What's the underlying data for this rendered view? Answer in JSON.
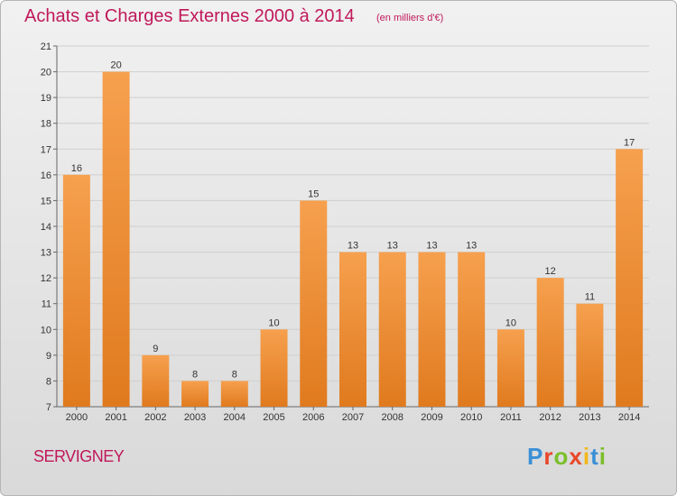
{
  "header": {
    "title": "Achats et Charges Externes 2000 à 2014",
    "subtitle": "(en milliers d'€)"
  },
  "footer": {
    "commune": "SERVIGNEY",
    "brand": "Proxiti"
  },
  "colors": {
    "title": "#c0185a",
    "bar_top": "#f6a04e",
    "bar_bottom": "#e07a1e",
    "brand_letters": [
      "#3a8fd6",
      "#e8482a",
      "#7bbf2a",
      "#e8482a",
      "#f2b71a",
      "#3a8fd6",
      "#7bbf2a"
    ]
  },
  "chart_data": {
    "type": "bar",
    "categories": [
      "2000",
      "2001",
      "2002",
      "2003",
      "2004",
      "2005",
      "2006",
      "2007",
      "2008",
      "2009",
      "2010",
      "2011",
      "2012",
      "2013",
      "2014"
    ],
    "values": [
      16,
      20,
      9,
      8,
      8,
      10,
      15,
      13,
      13,
      13,
      13,
      10,
      12,
      11,
      17
    ],
    "title": "Achats et Charges Externes 2000 à 2014",
    "subtitle": "(en milliers d'€)",
    "ylim": [
      7,
      21
    ],
    "yticks": [
      7,
      8,
      9,
      10,
      11,
      12,
      13,
      14,
      15,
      16,
      17,
      18,
      19,
      20,
      21
    ],
    "grid": true
  }
}
